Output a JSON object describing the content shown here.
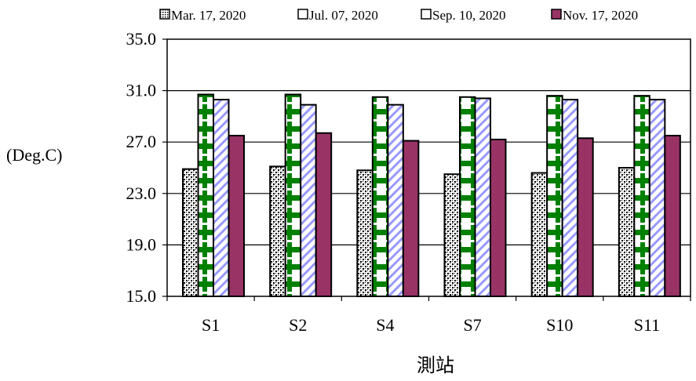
{
  "chart_data": {
    "type": "bar",
    "title": "",
    "xlabel": "測站",
    "ylabel": "(Deg.C)",
    "ylim": [
      15.0,
      35.0
    ],
    "yticks": [
      "35.0",
      "31.0",
      "27.0",
      "23.0",
      "19.0",
      "15.0"
    ],
    "ytick_values": [
      35.0,
      31.0,
      27.0,
      23.0,
      19.0,
      15.0
    ],
    "grid": true,
    "legend": "top",
    "categories": [
      "S1",
      "S2",
      "S4",
      "S7",
      "S10",
      "S11"
    ],
    "series": [
      {
        "name": "Mar. 17, 2020",
        "color": "#000000",
        "pattern": "dots",
        "values": [
          24.9,
          25.1,
          24.8,
          24.5,
          24.6,
          25.0
        ]
      },
      {
        "name": "Jul. 07, 2020",
        "color": "#008000",
        "pattern": "cross",
        "values": [
          30.7,
          30.7,
          30.5,
          30.5,
          30.6,
          30.6
        ]
      },
      {
        "name": "Sep. 10, 2020",
        "color": "#9999ff",
        "pattern": "diagonal",
        "values": [
          30.3,
          29.9,
          29.9,
          30.4,
          30.3,
          30.3
        ]
      },
      {
        "name": "Nov. 17, 2020",
        "color": "#993366",
        "pattern": "solid",
        "values": [
          27.5,
          27.7,
          27.1,
          27.2,
          27.3,
          27.5
        ]
      }
    ]
  }
}
